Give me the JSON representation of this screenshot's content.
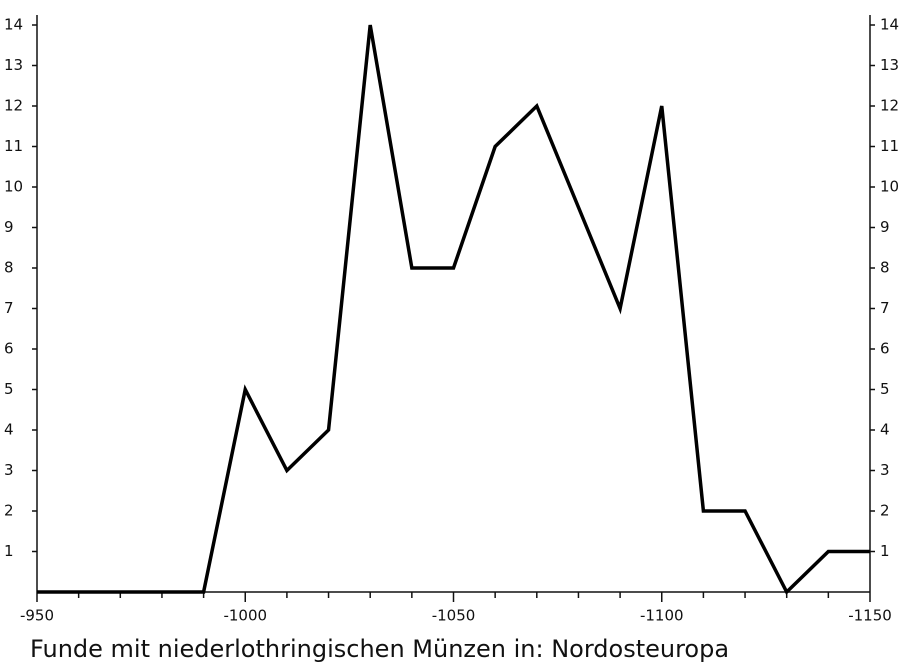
{
  "chart_data": {
    "type": "line",
    "title": "Funde mit niederlothringischen Münzen in: Nordosteuropa",
    "x": [
      -950,
      -960,
      -970,
      -980,
      -990,
      -1000,
      -1010,
      -1020,
      -1030,
      -1040,
      -1050,
      -1060,
      -1070,
      -1080,
      -1090,
      -1100,
      -1110,
      -1120,
      -1130,
      -1140,
      -1150
    ],
    "series": [
      {
        "name": "Funde",
        "color": "#000000",
        "values": [
          0,
          0,
          0,
          0,
          0,
          5,
          3,
          4,
          14,
          8,
          8,
          11,
          12,
          9.5,
          7,
          12,
          2,
          2,
          0,
          1,
          1
        ]
      }
    ],
    "xlim": [
      -950,
      -1150
    ],
    "xticks": [
      -950,
      -1000,
      -1050,
      -1100,
      -1150
    ],
    "xminorticks": [
      -960,
      -970,
      -980,
      -990,
      -1010,
      -1020,
      -1030,
      -1040,
      -1060,
      -1070,
      -1080,
      -1090,
      -1110,
      -1120,
      -1130,
      -1140
    ],
    "ylim": [
      0,
      14
    ],
    "yticks": [
      1,
      2,
      3,
      4,
      5,
      6,
      7,
      8,
      9,
      10,
      11,
      12,
      13,
      14
    ],
    "grid": false
  }
}
